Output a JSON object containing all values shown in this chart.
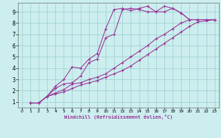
{
  "xlabel": "Windchill (Refroidissement éolien,°C)",
  "background_color": "#cceeee",
  "grid_color": "#99cccc",
  "line_color": "#993399",
  "xlim": [
    -0.5,
    23.5
  ],
  "ylim": [
    0.5,
    9.8
  ],
  "xticks": [
    0,
    1,
    2,
    3,
    4,
    5,
    6,
    7,
    8,
    9,
    10,
    11,
    12,
    13,
    14,
    15,
    16,
    17,
    18,
    19,
    20,
    21,
    22,
    23
  ],
  "yticks": [
    1,
    2,
    3,
    4,
    5,
    6,
    7,
    8,
    9
  ],
  "lines": [
    {
      "x": [
        1,
        2,
        3,
        4,
        5,
        6,
        7,
        8,
        9,
        10,
        11,
        12,
        13,
        14,
        15,
        16,
        17,
        18,
        19,
        20,
        21,
        22,
        23
      ],
      "y": [
        0.9,
        0.9,
        1.5,
        1.7,
        1.9,
        2.2,
        2.5,
        2.7,
        2.9,
        3.2,
        3.5,
        3.8,
        4.2,
        4.7,
        5.2,
        5.7,
        6.2,
        6.7,
        7.2,
        7.7,
        8.1,
        8.2,
        8.3
      ]
    },
    {
      "x": [
        1,
        2,
        3,
        4,
        5,
        6,
        7,
        8,
        9,
        10,
        11,
        12,
        13,
        14,
        15,
        16,
        17,
        18,
        19,
        20,
        21,
        22,
        23
      ],
      "y": [
        0.9,
        0.9,
        1.5,
        1.8,
        2.1,
        2.6,
        2.7,
        3.0,
        3.2,
        3.5,
        4.0,
        4.5,
        5.0,
        5.5,
        6.0,
        6.6,
        7.0,
        7.5,
        8.0,
        8.3,
        8.3,
        8.3,
        8.3
      ]
    },
    {
      "x": [
        1,
        2,
        3,
        4,
        5,
        6,
        7,
        8,
        9,
        10,
        11,
        12,
        13,
        14,
        15,
        16,
        17,
        18,
        19,
        20,
        21,
        22,
        23
      ],
      "y": [
        0.9,
        0.9,
        1.5,
        2.2,
        2.6,
        2.7,
        3.3,
        4.5,
        4.8,
        6.7,
        7.0,
        9.2,
        9.3,
        9.2,
        9.0,
        9.0,
        9.0,
        9.3,
        8.9,
        8.3,
        8.3,
        8.3,
        8.3
      ]
    },
    {
      "x": [
        1,
        2,
        3,
        4,
        5,
        6,
        7,
        8,
        9,
        10,
        11,
        12,
        13,
        14,
        15,
        16,
        17,
        18,
        19,
        20,
        21,
        22,
        23
      ],
      "y": [
        0.9,
        0.9,
        1.5,
        2.4,
        3.0,
        4.1,
        4.0,
        4.8,
        5.3,
        7.5,
        9.2,
        9.3,
        9.1,
        9.3,
        9.5,
        9.0,
        9.5,
        9.3,
        8.9,
        8.3,
        8.3,
        8.3,
        8.3
      ]
    }
  ]
}
